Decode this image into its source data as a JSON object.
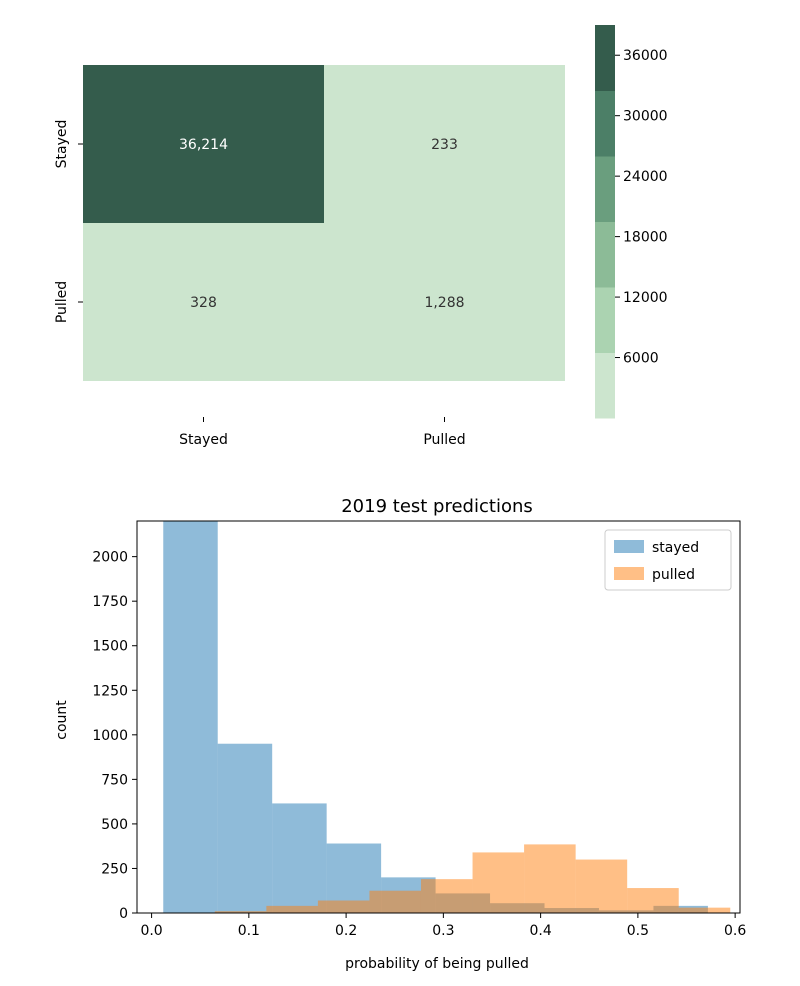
{
  "colors": {
    "heatmap_levels": [
      "#cce5ce",
      "#abd3b1",
      "#8cbb97",
      "#6a9e7e",
      "#4c7f67",
      "#345c4c"
    ],
    "stayed": "#1f77b4",
    "pulled": "#ff7f0e",
    "cell_text_dark": "#333333",
    "cell_text_light": "#ffffff"
  },
  "chart_data": [
    {
      "type": "heatmap",
      "title": "",
      "rows": [
        "Stayed",
        "Pulled"
      ],
      "columns": [
        "Stayed",
        "Pulled"
      ],
      "values": [
        [
          36214,
          233
        ],
        [
          328,
          1288
        ]
      ],
      "value_labels": [
        [
          "36,214",
          "233"
        ],
        [
          "328",
          "1,288"
        ]
      ],
      "colorbar": {
        "range": [
          0,
          39000
        ],
        "ticks": [
          36000,
          30000,
          24000,
          18000,
          12000,
          6000
        ],
        "tick_labels": [
          "36000",
          "30000",
          "24000",
          "18000",
          "12000",
          "6000"
        ],
        "bins": 6
      }
    },
    {
      "type": "histogram",
      "title": "2019 test predictions",
      "xlabel": "probability of being pulled",
      "ylabel": "count",
      "xlim": [
        -0.015,
        0.605
      ],
      "ylim": [
        0,
        2200
      ],
      "xticks": [
        0.0,
        0.1,
        0.2,
        0.3,
        0.4,
        0.5,
        0.6
      ],
      "xtick_labels": [
        "0.0",
        "0.1",
        "0.2",
        "0.3",
        "0.4",
        "0.5",
        "0.6"
      ],
      "yticks": [
        0,
        250,
        500,
        750,
        1000,
        1250,
        1500,
        1750,
        2000
      ],
      "ytick_labels": [
        "0",
        "250",
        "500",
        "750",
        "1000",
        "1250",
        "1500",
        "1750",
        "2000"
      ],
      "legend_position": "upper-right",
      "bar_alpha": 0.5,
      "series": [
        {
          "name": "stayed",
          "bins": [
            [
              0.012,
              0.068,
              2200
            ],
            [
              0.068,
              0.124,
              950
            ],
            [
              0.124,
              0.18,
              615
            ],
            [
              0.18,
              0.236,
              390
            ],
            [
              0.236,
              0.292,
              200
            ],
            [
              0.292,
              0.348,
              110
            ],
            [
              0.348,
              0.404,
              55
            ],
            [
              0.404,
              0.46,
              28
            ],
            [
              0.46,
              0.516,
              15
            ],
            [
              0.516,
              0.572,
              40
            ]
          ]
        },
        {
          "name": "pulled",
          "bins": [
            [
              0.065,
              0.118,
              10
            ],
            [
              0.118,
              0.171,
              40
            ],
            [
              0.171,
              0.224,
              70
            ],
            [
              0.224,
              0.277,
              125
            ],
            [
              0.277,
              0.33,
              190
            ],
            [
              0.33,
              0.383,
              340
            ],
            [
              0.383,
              0.436,
              385
            ],
            [
              0.436,
              0.489,
              300
            ],
            [
              0.489,
              0.542,
              140
            ],
            [
              0.542,
              0.595,
              30
            ]
          ]
        }
      ]
    }
  ]
}
